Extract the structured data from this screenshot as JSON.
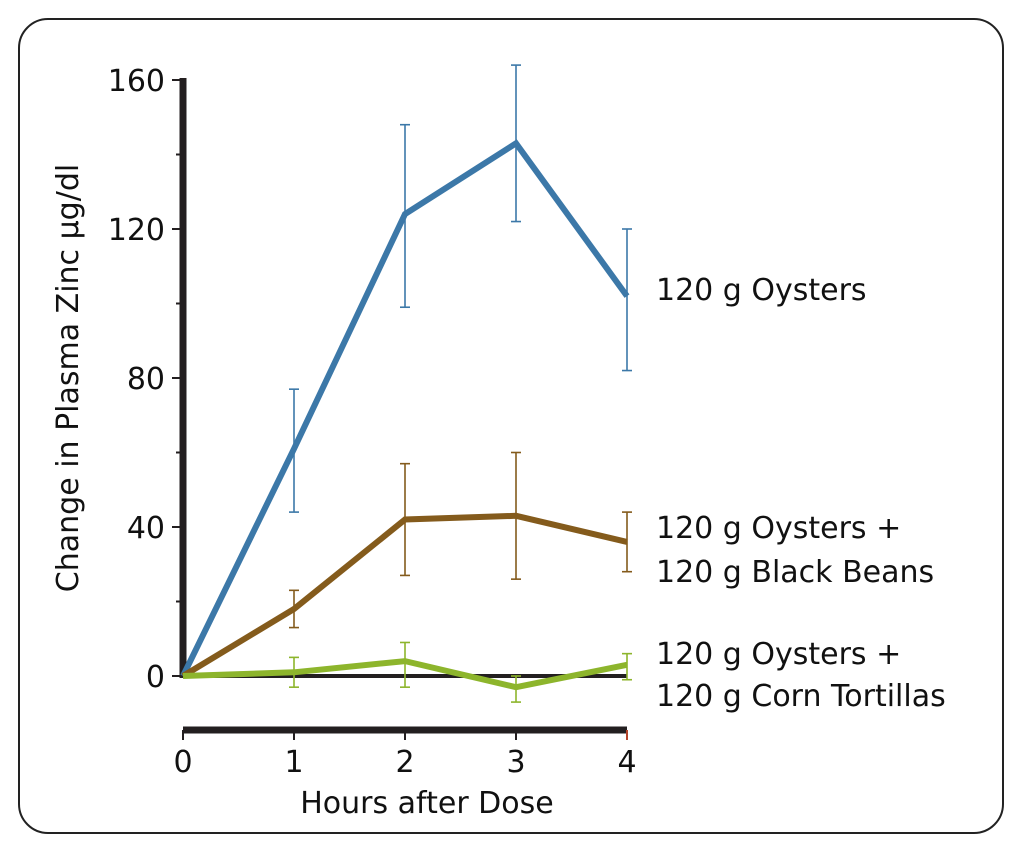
{
  "chart_data": {
    "type": "line",
    "title": "",
    "xlabel": "Hours after Dose",
    "ylabel": "Change in Plasma Zinc µg/dl",
    "x": [
      0,
      1,
      2,
      3,
      4
    ],
    "xlim": [
      0,
      4
    ],
    "ylim": [
      0,
      160
    ],
    "x_ticks": [
      "0",
      "1",
      "2",
      "3",
      "4"
    ],
    "y_ticks": [
      "0",
      "40",
      "80",
      "120",
      "160"
    ],
    "grid": false,
    "legend": "direct labels at right end of each line",
    "series": [
      {
        "name": "120 g Oysters",
        "label_lines": [
          "120 g Oysters"
        ],
        "color": "#3c78a8",
        "values": [
          0,
          61,
          124,
          143,
          102
        ],
        "error_low": [
          0,
          44,
          99,
          122,
          82
        ],
        "error_high": [
          0,
          77,
          148,
          164,
          120
        ]
      },
      {
        "name": "120 g Oysters + 120 g Black Beans",
        "label_lines": [
          "120 g Oysters +",
          "120 g Black Beans"
        ],
        "color": "#845b1c",
        "values": [
          0,
          18,
          42,
          43,
          36
        ],
        "error_low": [
          0,
          13,
          27,
          26,
          28
        ],
        "error_high": [
          0,
          23,
          57,
          60,
          44
        ]
      },
      {
        "name": "120 g Oysters + 120 g Corn Tortillas",
        "label_lines": [
          "120 g Oysters +",
          "120 g Corn Tortillas"
        ],
        "color": "#8db52c",
        "values": [
          0,
          1,
          4,
          -3,
          3
        ],
        "error_low": [
          0,
          -3,
          -3,
          -7,
          -1
        ],
        "error_high": [
          0,
          5,
          9,
          0,
          6
        ]
      }
    ]
  }
}
